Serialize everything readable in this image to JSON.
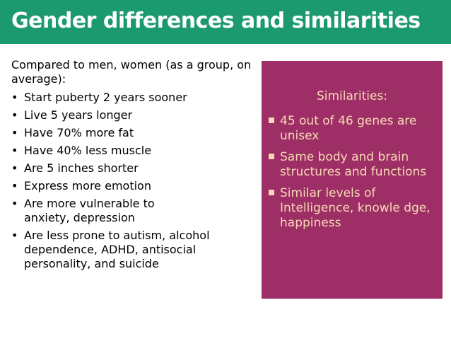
{
  "title": "Gender differences and similarities",
  "differences": {
    "intro": "Compared to men, women (as a group, on average):",
    "bullet_glyph": "•",
    "items": [
      "Start puberty 2 years sooner",
      "Live 5 years longer",
      "Have 70% more fat",
      "Have 40% less muscle",
      "Are 5 inches shorter",
      "Express more emotion",
      "Are more vulnerable to anxiety, depression",
      "Are less prone to autism, alcohol dependence, ADHD, antisocial personality, and suicide"
    ]
  },
  "similarities": {
    "heading": "Similarities:",
    "items": [
      "45 out of 46 genes are unisex",
      "Same body and brain structures and functions",
      "Similar levels of Intelligence, knowle dge, happiness"
    ]
  },
  "colors": {
    "title_bar": "#1c9a6f",
    "similarities_box": "#9e2e66",
    "similarities_text": "#f7d9b5"
  }
}
